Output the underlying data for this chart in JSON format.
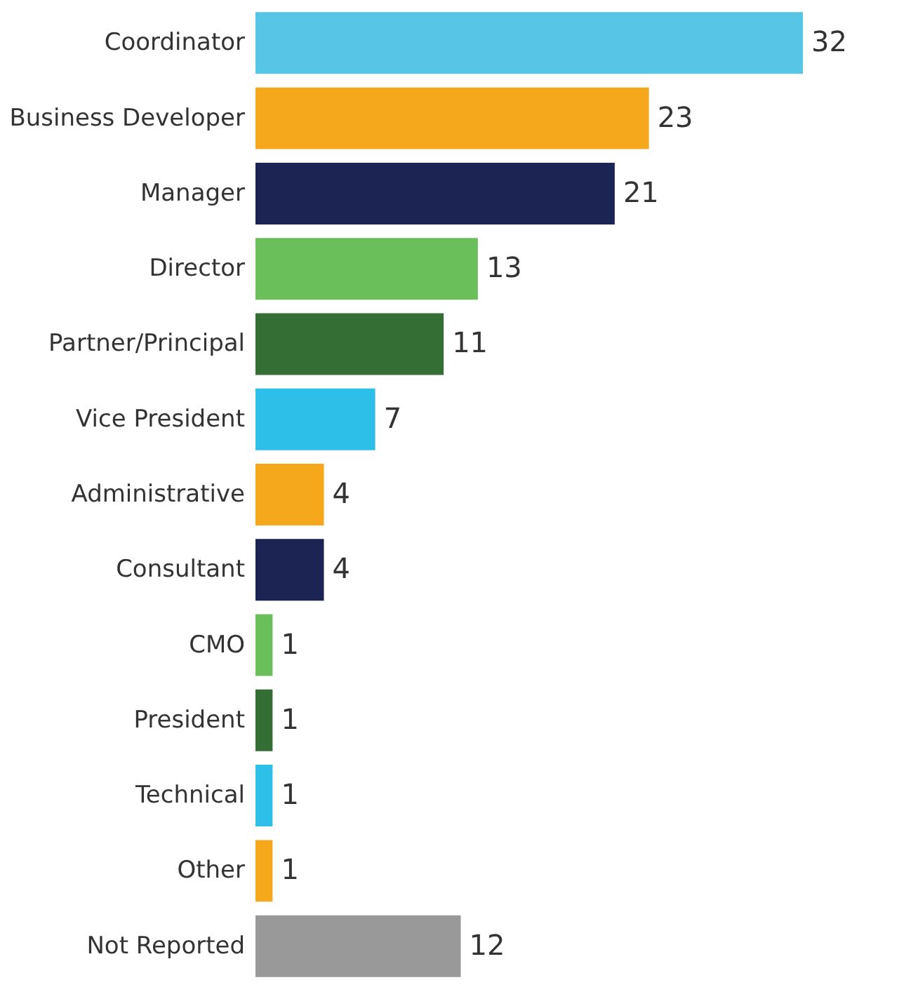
{
  "chart_data": {
    "type": "bar",
    "orientation": "horizontal",
    "categories": [
      "Coordinator",
      "Business Developer",
      "Manager",
      "Director",
      "Partner/Principal",
      "Vice President",
      "Administrative",
      "Consultant",
      "CMO",
      "President",
      "Technical",
      "Other",
      "Not Reported"
    ],
    "values": [
      32,
      23,
      21,
      13,
      11,
      7,
      4,
      4,
      1,
      1,
      1,
      1,
      12
    ],
    "colors": [
      "#56c5e6",
      "#f5a81c",
      "#1b2452",
      "#6abf5a",
      "#356e34",
      "#2ebfe9",
      "#f5a81c",
      "#1b2452",
      "#6abf5a",
      "#356e34",
      "#2ebfe9",
      "#f5a81c",
      "#999999"
    ],
    "data_labels": true,
    "tick_labels": "y",
    "grid": false
  }
}
